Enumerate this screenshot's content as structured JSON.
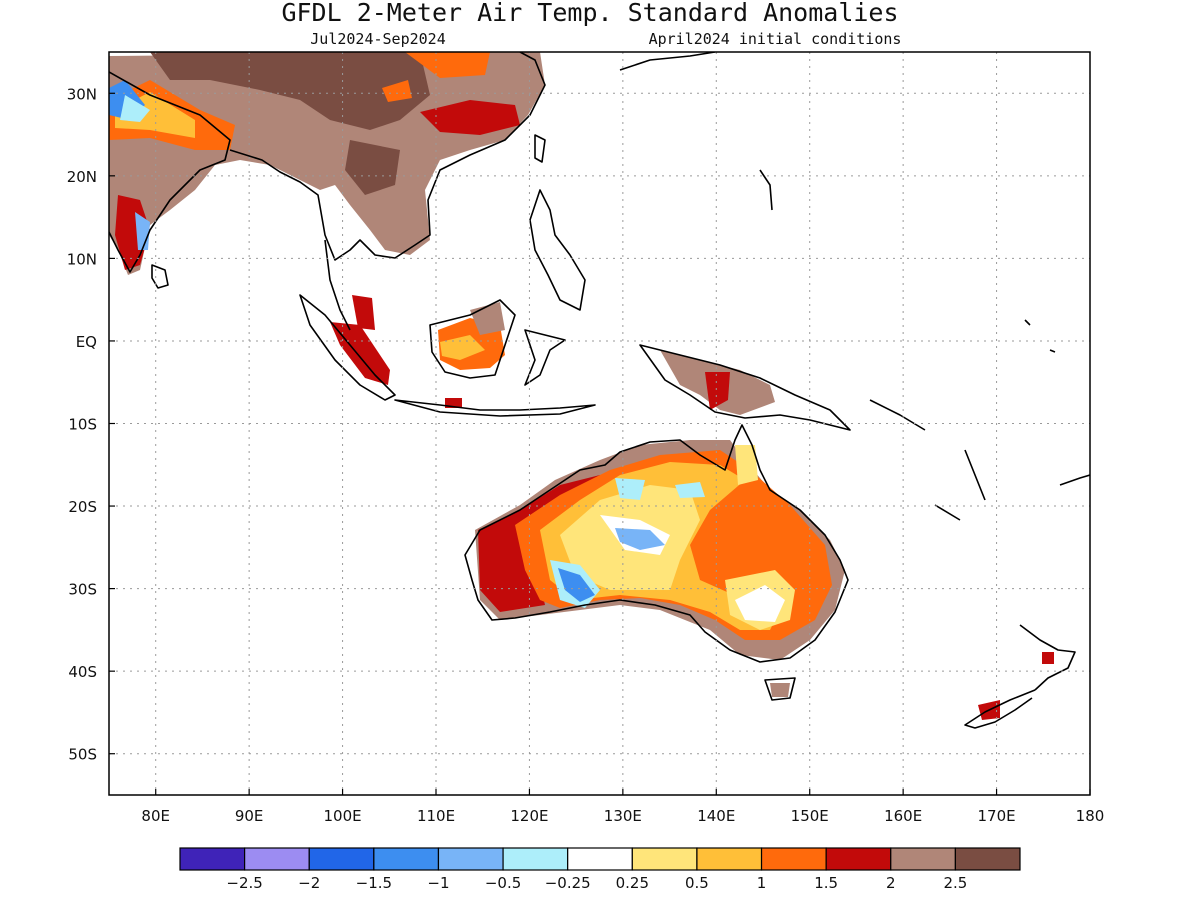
{
  "header": {
    "title": "GFDL 2-Meter Air Temp. Standard Anomalies",
    "period": "Jul2024-Sep2024",
    "init": "April2024 initial conditions"
  },
  "map": {
    "lon_range": [
      75,
      180
    ],
    "lat_range": [
      -55,
      35
    ],
    "lon_ticks": [
      {
        "v": 80,
        "label": "80E"
      },
      {
        "v": 90,
        "label": "90E"
      },
      {
        "v": 100,
        "label": "100E"
      },
      {
        "v": 110,
        "label": "110E"
      },
      {
        "v": 120,
        "label": "120E"
      },
      {
        "v": 130,
        "label": "130E"
      },
      {
        "v": 140,
        "label": "140E"
      },
      {
        "v": 150,
        "label": "150E"
      },
      {
        "v": 160,
        "label": "160E"
      },
      {
        "v": 170,
        "label": "170E"
      },
      {
        "v": 180,
        "label": "180"
      }
    ],
    "lat_ticks": [
      {
        "v": 30,
        "label": "30N"
      },
      {
        "v": 20,
        "label": "20N"
      },
      {
        "v": 10,
        "label": "10N"
      },
      {
        "v": 0,
        "label": "EQ"
      },
      {
        "v": -10,
        "label": "10S"
      },
      {
        "v": -20,
        "label": "20S"
      },
      {
        "v": -30,
        "label": "30S"
      },
      {
        "v": -40,
        "label": "40S"
      },
      {
        "v": -50,
        "label": "50S"
      }
    ],
    "grid": true,
    "coastline_color": "#000000"
  },
  "legend": {
    "colors": [
      "#3f23b8",
      "#9c8cf2",
      "#2166e8",
      "#3d8ef0",
      "#78b4f7",
      "#adeefa",
      "#ffffff",
      "#ffe57a",
      "#ffbf38",
      "#ff6a0c",
      "#c20a0a",
      "#b08678",
      "#7a4d42"
    ],
    "labels": [
      "-2.5",
      "-2",
      "-1.5",
      "-1",
      "-0.5",
      "-0.25",
      "0.25",
      "0.5",
      "1",
      "1.5",
      "2",
      "2.5"
    ]
  }
}
